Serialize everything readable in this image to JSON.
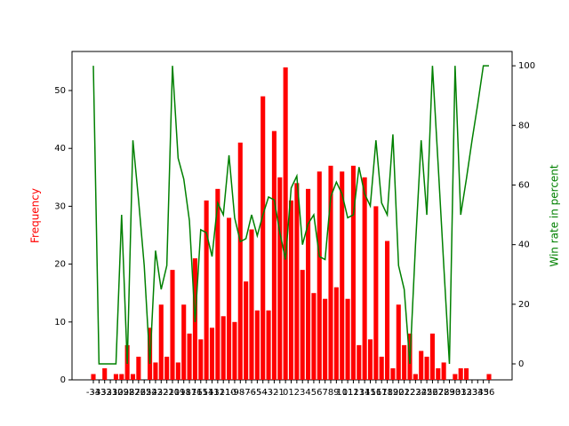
{
  "chart_data": {
    "type": "bar_line",
    "categories": [
      "-34",
      "-33",
      "-32",
      "-31",
      "-30",
      "-29",
      "-28",
      "-27",
      "-26",
      "-25",
      "-24",
      "-23",
      "-22",
      "-21",
      "-20",
      "-19",
      "-18",
      "-17",
      "-16",
      "-15",
      "-14",
      "-13",
      "-12",
      "-11",
      "-10",
      "-9",
      "-8",
      "-7",
      "-6",
      "-5",
      "-4",
      "-3",
      "-2",
      "-1",
      "0",
      "1",
      "2",
      "3",
      "4",
      "5",
      "6",
      "7",
      "8",
      "9",
      "10",
      "11",
      "12",
      "13",
      "14",
      "15",
      "16",
      "17",
      "18",
      "19",
      "20",
      "21",
      "22",
      "23",
      "24",
      "25",
      "26",
      "27",
      "28",
      "29",
      "30",
      "31",
      "32",
      "33",
      "34",
      "35",
      "36"
    ],
    "series": [
      {
        "name": "Frequency",
        "color": "#ff0000",
        "axis": "y",
        "values": [
          1,
          0,
          2,
          0,
          1,
          1,
          6,
          1,
          4,
          0,
          9,
          3,
          13,
          4,
          19,
          3,
          13,
          8,
          21,
          7,
          31,
          9,
          33,
          11,
          28,
          10,
          41,
          17,
          26,
          12,
          49,
          12,
          43,
          35,
          54,
          31,
          34,
          19,
          33,
          15,
          36,
          14,
          37,
          16,
          36,
          14,
          37,
          6,
          35,
          7,
          30,
          4,
          24,
          2,
          13,
          6,
          8,
          1,
          5,
          4,
          8,
          2,
          3,
          0,
          1,
          2,
          2,
          0,
          0,
          0,
          1
        ]
      },
      {
        "name": "Win rate in percent",
        "color": "#008000",
        "axis": "y2",
        "values": [
          100,
          0,
          0,
          0,
          0,
          50,
          0,
          75,
          55,
          33,
          0,
          38,
          25,
          33,
          100,
          69,
          62,
          48,
          14,
          45,
          44,
          36,
          54,
          50,
          70,
          49,
          41,
          42,
          50,
          43,
          50,
          56,
          55,
          44,
          35,
          59,
          63,
          40,
          47,
          50,
          36,
          35,
          56,
          61,
          57,
          49,
          50,
          66,
          57,
          53,
          75,
          54,
          50,
          77,
          33,
          25,
          0,
          40,
          75,
          50,
          100,
          67,
          33,
          0,
          100,
          50,
          62,
          75,
          87,
          100,
          100
        ]
      }
    ],
    "ylabel": "Frequency",
    "y2label": "Win rate in percent",
    "ylim": [
      0,
      56.75
    ],
    "yticks": [
      0,
      10,
      20,
      30,
      40,
      50
    ],
    "y2lim": [
      -5.36,
      104.8
    ],
    "y2ticks": [
      0,
      20,
      40,
      60,
      80,
      100
    ]
  }
}
